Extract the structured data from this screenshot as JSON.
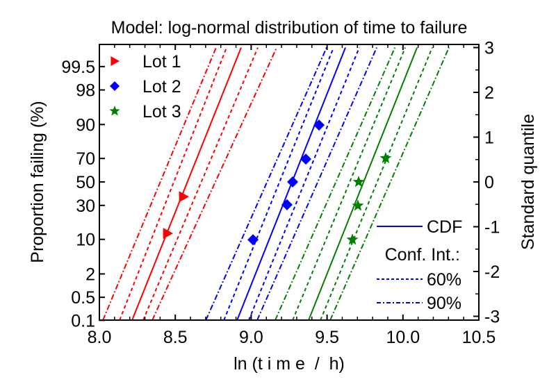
{
  "chart_data": {
    "type": "scatter",
    "title": "Model: log-normal distribution of time to failure",
    "xlabel": "ln (t i m e  /  h)",
    "ylabel": "Proportion failing (%)",
    "y2label": "Standard quantile",
    "xlim": [
      8.0,
      10.5
    ],
    "ylim_quantile": [
      -3.1,
      3.1
    ],
    "x_ticks": [
      {
        "value": 8.0,
        "label": "8.0"
      },
      {
        "value": 8.5,
        "label": "8.5"
      },
      {
        "value": 9.0,
        "label": "9.0"
      },
      {
        "value": 9.5,
        "label": "9.5"
      },
      {
        "value": 10.0,
        "label": "10.0"
      },
      {
        "value": 10.5,
        "label": "10.5"
      }
    ],
    "y_ticks_percent": [
      {
        "quantile": 2.576,
        "label": "99.5"
      },
      {
        "quantile": 2.054,
        "label": "98"
      },
      {
        "quantile": 1.282,
        "label": "90"
      },
      {
        "quantile": 0.524,
        "label": "70"
      },
      {
        "quantile": 0.0,
        "label": "50"
      },
      {
        "quantile": -0.524,
        "label": "30"
      },
      {
        "quantile": -1.282,
        "label": "10"
      },
      {
        "quantile": -2.054,
        "label": "2"
      },
      {
        "quantile": -2.576,
        "label": "0.5"
      },
      {
        "quantile": -3.09,
        "label": "0.1"
      }
    ],
    "y2_ticks": [
      {
        "value": 3,
        "label": "3"
      },
      {
        "value": 2,
        "label": "2"
      },
      {
        "value": 1,
        "label": "1"
      },
      {
        "value": 0,
        "label": "0"
      },
      {
        "value": -1,
        "label": "-1"
      },
      {
        "value": -2,
        "label": "-2"
      },
      {
        "value": -3,
        "label": "-3"
      }
    ],
    "series": [
      {
        "name": "Lot 1",
        "color": "#ff0000",
        "marker": "triangle-right",
        "points": [
          [
            8.554,
            -0.33
          ],
          [
            8.449,
            -1.15
          ]
        ],
        "cdf": [
          [
            8.215,
            -3.09
          ],
          [
            8.934,
            3.0
          ]
        ],
        "ci60": [
          [
            [
              8.133,
              -3.09
            ],
            [
              8.838,
              3.0
            ]
          ],
          [
            [
              8.288,
              -3.09
            ],
            [
              9.044,
              3.0
            ]
          ]
        ],
        "ci90": [
          [
            [
              8.023,
              -3.09
            ],
            [
              8.769,
              3.0
            ]
          ],
          [
            [
              8.348,
              -3.09
            ],
            [
              9.168,
              3.0
            ]
          ]
        ]
      },
      {
        "name": "Lot 2",
        "color": "#0000ff",
        "marker": "diamond",
        "points": [
          [
            9.012,
            -1.29
          ],
          [
            9.236,
            -0.51
          ],
          [
            9.273,
            0.0
          ],
          [
            9.36,
            0.51
          ],
          [
            9.447,
            1.27
          ]
        ],
        "cdf": [
          [
            8.907,
            -3.09
          ],
          [
            9.621,
            3.0
          ]
        ],
        "ci60": [
          [
            [
              8.82,
              -3.09
            ],
            [
              9.543,
              3.0
            ]
          ],
          [
            [
              8.984,
              -3.09
            ],
            [
              9.712,
              3.0
            ]
          ]
        ],
        "ci90": [
          [
            [
              8.701,
              -3.09
            ],
            [
              9.497,
              3.0
            ]
          ],
          [
            [
              9.039,
              -3.09
            ],
            [
              9.827,
              3.0
            ]
          ]
        ]
      },
      {
        "name": "Lot 3",
        "color": "#008000",
        "marker": "star",
        "points": [
          [
            9.667,
            -1.29
          ],
          [
            9.703,
            -0.53
          ],
          [
            9.708,
            0.0
          ],
          [
            9.886,
            0.53
          ]
        ],
        "cdf": [
          [
            9.378,
            -3.09
          ],
          [
            10.093,
            3.0
          ]
        ],
        "ci60": [
          [
            [
              9.273,
              -3.09
            ],
            [
              10.015,
              3.0
            ]
          ],
          [
            [
              9.456,
              -3.09
            ],
            [
              10.193,
              3.0
            ]
          ]
        ],
        "ci90": [
          [
            [
              9.158,
              -3.09
            ],
            [
              9.947,
              3.0
            ]
          ],
          [
            [
              9.52,
              -3.09
            ],
            [
              10.303,
              3.0
            ]
          ]
        ]
      }
    ],
    "legend_markers": {
      "placement": "top-left",
      "entries": [
        "Lot 1",
        "Lot 2",
        "Lot 3"
      ]
    },
    "legend_lines": {
      "placement": "bottom-right",
      "color": "#0000ff",
      "entries": [
        {
          "style": "solid",
          "label": "CDF"
        },
        {
          "style": "heading",
          "label": "Conf. Int.:"
        },
        {
          "style": "dash",
          "label": "60%"
        },
        {
          "style": "dashdot",
          "label": "90%"
        }
      ]
    }
  }
}
